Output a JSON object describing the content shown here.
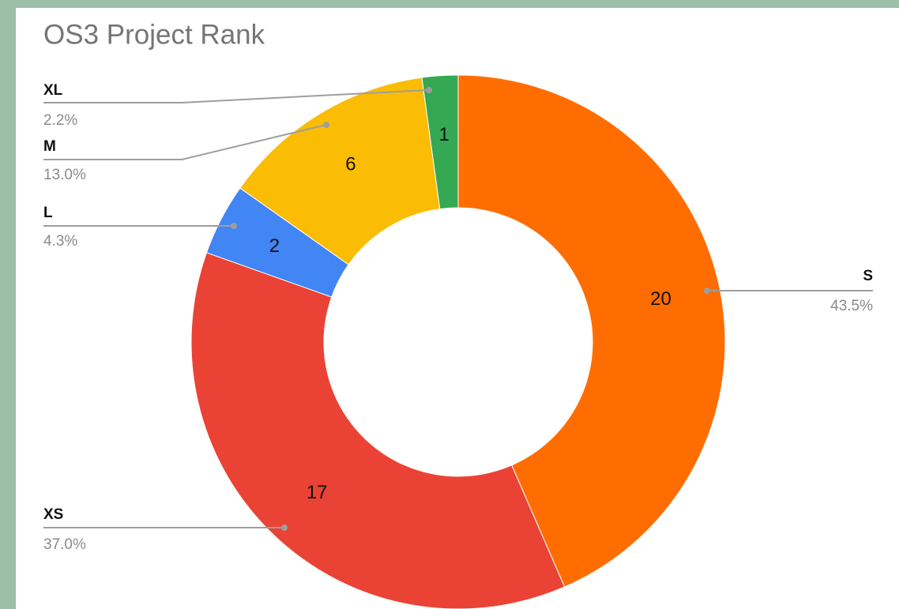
{
  "chart_data": {
    "type": "pie",
    "title": "OS3 Project Rank",
    "categories": [
      "S",
      "XS",
      "L",
      "M",
      "XL"
    ],
    "values": [
      20,
      17,
      2,
      6,
      1
    ],
    "percentage_labels": [
      "43.5%",
      "37.0%",
      "4.3%",
      "13.0%",
      "2.2%"
    ],
    "colors": [
      "#ff6d00",
      "#ea4335",
      "#4285f4",
      "#fbbc04",
      "#34a853"
    ],
    "donut": true
  }
}
